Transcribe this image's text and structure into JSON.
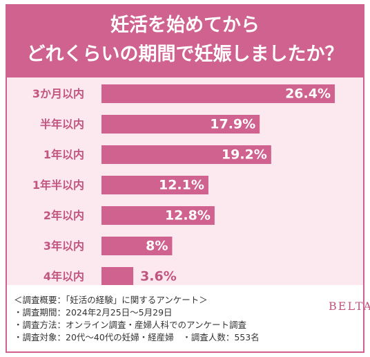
{
  "title_lines": [
    "妊活を始めてから",
    "どれくらいの期間で妊娠しましたか？"
  ],
  "colors": {
    "bar": "#d0628f",
    "header": "#d0628f",
    "panel": "#fce8ef",
    "label": "#c2557f",
    "value_inside": "#ffffff"
  },
  "chart_data": {
    "type": "bar",
    "orientation": "horizontal",
    "categories": [
      "3か月以内",
      "半年以内",
      "1年以内",
      "1年半以内",
      "2年以内",
      "3年以内",
      "4年以内"
    ],
    "values": [
      26.4,
      17.9,
      19.2,
      12.1,
      12.8,
      8,
      3.6
    ],
    "value_labels": [
      "26.4%",
      "17.9%",
      "19.2%",
      "12.1%",
      "12.8%",
      "8%",
      "3.6%"
    ],
    "xlim": [
      0,
      26.4
    ]
  },
  "footer": {
    "notes": [
      "＜調査概要：「妊活の経験」に関するアンケート＞",
      "・調査期間：2024年2月25日〜5月29日",
      "・調査方法：オンライン調査・産婦人科でのアンケート調査",
      "・調査対象：20代〜40代の妊婦・経産婦　・調査人数：553名"
    ],
    "brand": "BELTA"
  }
}
